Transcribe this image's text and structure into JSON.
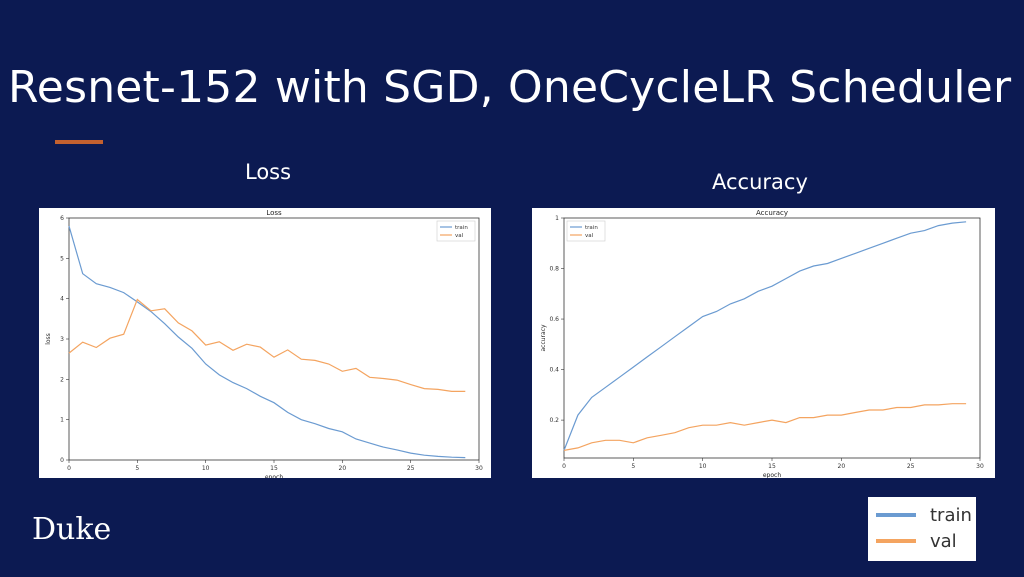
{
  "slide": {
    "title": "Resnet-152 with SGD, OneCycleLR Scheduler",
    "loss_caption": "Loss",
    "accuracy_caption": "Accuracy",
    "logo": "Duke"
  },
  "legend": {
    "train": "train",
    "val": "val"
  },
  "colors": {
    "train": "#6b9bd1",
    "val": "#f4a460",
    "background": "#0c1a52",
    "accent": "#c4612f"
  },
  "chart_data": [
    {
      "type": "line",
      "title": "Loss",
      "xlabel": "epoch",
      "ylabel": "loss",
      "xlim": [
        0,
        30
      ],
      "ylim": [
        0,
        6
      ],
      "xticks": [
        0,
        5,
        10,
        15,
        20,
        25,
        30
      ],
      "yticks": [
        0,
        1,
        2,
        3,
        4,
        5,
        6
      ],
      "legend_position": "top-right",
      "x": [
        0,
        1,
        2,
        3,
        4,
        5,
        6,
        7,
        8,
        9,
        10,
        11,
        12,
        13,
        14,
        15,
        16,
        17,
        18,
        19,
        20,
        21,
        22,
        23,
        24,
        25,
        26,
        27,
        28,
        29
      ],
      "series": [
        {
          "name": "train",
          "values": [
            5.8,
            4.62,
            4.37,
            4.28,
            4.15,
            3.92,
            3.68,
            3.38,
            3.05,
            2.77,
            2.38,
            2.11,
            1.92,
            1.77,
            1.58,
            1.42,
            1.18,
            1.0,
            0.9,
            0.78,
            0.7,
            0.52,
            0.42,
            0.32,
            0.25,
            0.17,
            0.12,
            0.09,
            0.07,
            0.06
          ]
        },
        {
          "name": "val",
          "values": [
            2.65,
            2.92,
            2.79,
            3.02,
            3.12,
            3.98,
            3.7,
            3.75,
            3.4,
            3.2,
            2.85,
            2.93,
            2.72,
            2.87,
            2.8,
            2.55,
            2.73,
            2.5,
            2.47,
            2.38,
            2.2,
            2.27,
            2.05,
            2.02,
            1.98,
            1.87,
            1.77,
            1.75,
            1.7,
            1.7
          ]
        }
      ]
    },
    {
      "type": "line",
      "title": "Accuracy",
      "xlabel": "epoch",
      "ylabel": "accuracy",
      "xlim": [
        0,
        30
      ],
      "ylim": [
        0.05,
        1.0
      ],
      "xticks": [
        0,
        5,
        10,
        15,
        20,
        25,
        30
      ],
      "yticks": [
        0.2,
        0.4,
        0.6,
        0.8,
        1.0
      ],
      "legend_position": "top-left",
      "x": [
        0,
        1,
        2,
        3,
        4,
        5,
        6,
        7,
        8,
        9,
        10,
        11,
        12,
        13,
        14,
        15,
        16,
        17,
        18,
        19,
        20,
        21,
        22,
        23,
        24,
        25,
        26,
        27,
        28,
        29
      ],
      "series": [
        {
          "name": "train",
          "values": [
            0.08,
            0.22,
            0.29,
            0.33,
            0.37,
            0.41,
            0.45,
            0.49,
            0.53,
            0.57,
            0.61,
            0.63,
            0.66,
            0.68,
            0.71,
            0.73,
            0.76,
            0.79,
            0.81,
            0.82,
            0.84,
            0.86,
            0.88,
            0.9,
            0.92,
            0.94,
            0.95,
            0.97,
            0.98,
            0.985
          ]
        },
        {
          "name": "val",
          "values": [
            0.08,
            0.09,
            0.11,
            0.12,
            0.12,
            0.11,
            0.13,
            0.14,
            0.15,
            0.17,
            0.18,
            0.18,
            0.19,
            0.18,
            0.19,
            0.2,
            0.19,
            0.21,
            0.21,
            0.22,
            0.22,
            0.23,
            0.24,
            0.24,
            0.25,
            0.25,
            0.26,
            0.26,
            0.265,
            0.265
          ]
        }
      ]
    }
  ]
}
